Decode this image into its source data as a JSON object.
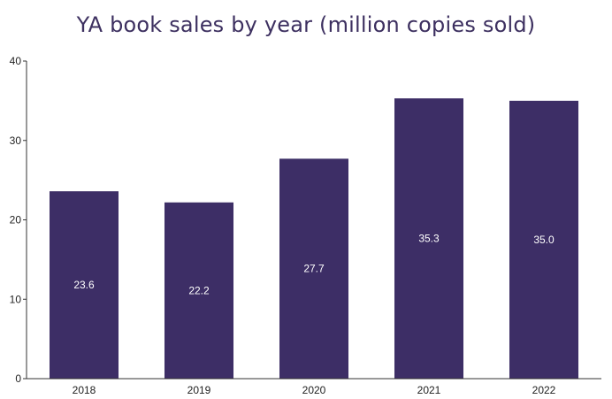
{
  "colors": {
    "bar": "#3d2e66",
    "axis": "#333333",
    "title": "#3d3060",
    "bar_label": "#ffffff"
  },
  "chart_data": {
    "type": "bar",
    "title": "YA book sales by year (million copies sold)",
    "categories": [
      "2018",
      "2019",
      "2020",
      "2021",
      "2022"
    ],
    "values": [
      23.6,
      22.2,
      27.7,
      35.3,
      35.0
    ],
    "value_labels": [
      "23.6",
      "22.2",
      "27.7",
      "35.3",
      "35.0"
    ],
    "ylim": [
      0,
      40
    ],
    "yticks": [
      0,
      10,
      20,
      30,
      40
    ],
    "ytick_labels": [
      "0",
      "10",
      "20",
      "30",
      "40"
    ],
    "grid": false,
    "legend": "none"
  }
}
